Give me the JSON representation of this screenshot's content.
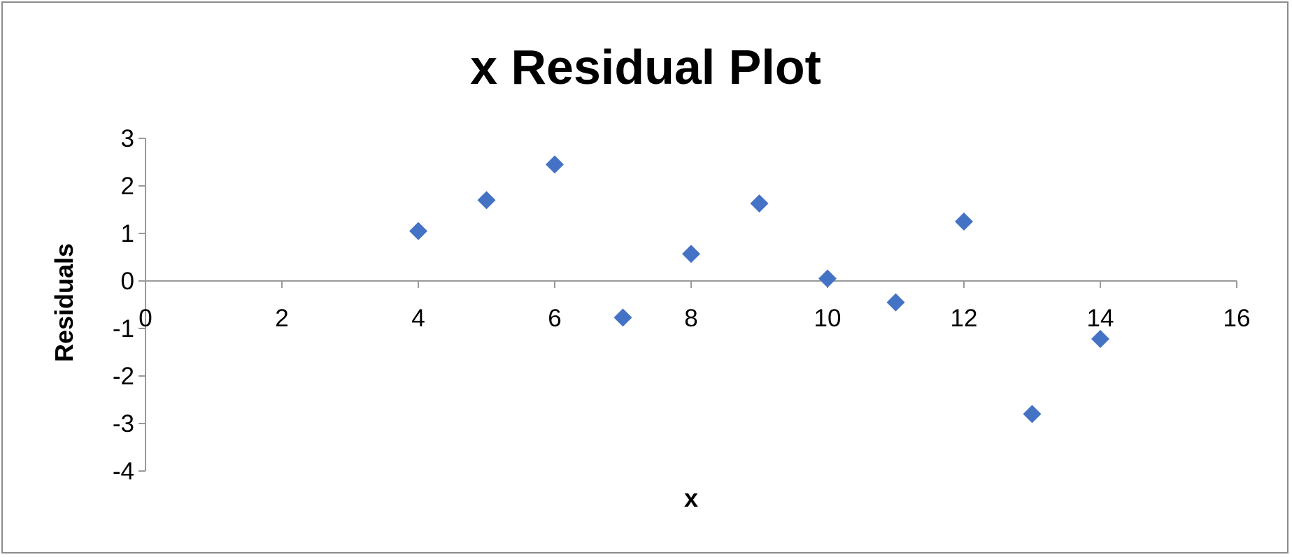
{
  "chart_data": {
    "type": "scatter",
    "title": "x  Residual Plot",
    "xlabel": "x",
    "ylabel": "Residuals",
    "xlim": [
      0,
      16
    ],
    "ylim": [
      -4,
      3
    ],
    "x_ticks": [
      0,
      2,
      4,
      6,
      8,
      10,
      12,
      14,
      16
    ],
    "y_ticks": [
      3,
      2,
      1,
      0,
      -1,
      -2,
      -3,
      -4
    ],
    "grid": false,
    "legend": "none",
    "marker": "diamond",
    "color": "#4472C4",
    "points": [
      {
        "x": 4,
        "y": 1.05
      },
      {
        "x": 5,
        "y": 1.7
      },
      {
        "x": 6,
        "y": 2.45
      },
      {
        "x": 7,
        "y": -0.77
      },
      {
        "x": 8,
        "y": 0.57
      },
      {
        "x": 9,
        "y": 1.63
      },
      {
        "x": 10,
        "y": 0.05
      },
      {
        "x": 11,
        "y": -0.45
      },
      {
        "x": 12,
        "y": 1.25
      },
      {
        "x": 13,
        "y": -2.8
      },
      {
        "x": 14,
        "y": -1.22
      }
    ]
  }
}
